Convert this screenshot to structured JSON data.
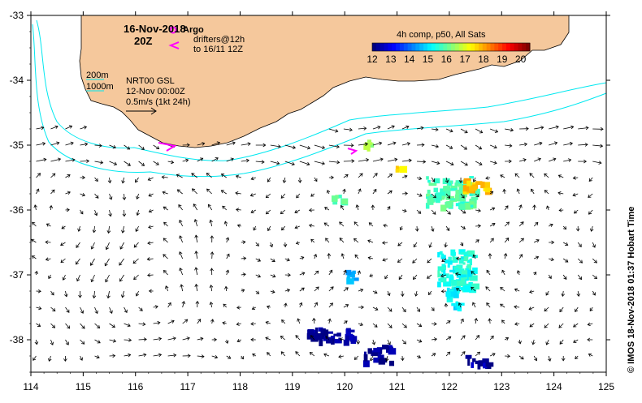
{
  "map": {
    "date_label": "16-Nov-2018",
    "time_label": "20Z",
    "legend_argo": "Argo",
    "legend_drifters_line1": "drifters@12h",
    "legend_drifters_line2": "to 16/11 12Z",
    "depth_200": "200m",
    "depth_1000": "1000m",
    "product_line1": "NRT00 GSL",
    "product_line2": "12-Nov 00:00Z",
    "scale_label": "0.5m/s (1kt 24h)",
    "colorbar_title": "4h comp, p50, All Sats",
    "colorbar_ticks": [
      "12",
      "13",
      "14",
      "15",
      "16",
      "17",
      "18",
      "19",
      "20"
    ],
    "colorbar_range": [
      12,
      20.5
    ],
    "credit": "© IMOS 18-Nov-2018 01:37 Hobart Time",
    "lon_ticks": [
      "114",
      "115",
      "116",
      "117",
      "118",
      "119",
      "120",
      "121",
      "122",
      "123",
      "124",
      "125"
    ],
    "lat_ticks": [
      "-33",
      "-34",
      "-35",
      "-36",
      "-37",
      "-38"
    ],
    "lon_range": [
      114,
      125
    ],
    "lat_range": [
      -38.5,
      -33
    ],
    "colors": {
      "land": "#f5c89c",
      "isobath": "#00e8f0",
      "argo": "#ff00ff",
      "drifter": "#ff00ff",
      "arrow": "#000000",
      "scale_arrow": "#ff0000"
    },
    "sst_patches": [
      {
        "lon": 122.0,
        "lat": -35.7,
        "w": 0.9,
        "h": 0.45,
        "sst": 15.8
      },
      {
        "lon": 122.5,
        "lat": -35.6,
        "w": 0.5,
        "h": 0.18,
        "sst": 17.8
      },
      {
        "lon": 122.1,
        "lat": -36.9,
        "w": 0.7,
        "h": 0.6,
        "sst": 15.4
      },
      {
        "lon": 122.05,
        "lat": -37.35,
        "w": 0.25,
        "h": 0.35,
        "sst": 15.0
      },
      {
        "lon": 119.7,
        "lat": -37.9,
        "w": 0.9,
        "h": 0.2,
        "sst": 12.2
      },
      {
        "lon": 120.6,
        "lat": -38.2,
        "w": 0.5,
        "h": 0.25,
        "sst": 12.2
      },
      {
        "lon": 122.5,
        "lat": -38.3,
        "w": 0.4,
        "h": 0.15,
        "sst": 12.3
      },
      {
        "lon": 120.1,
        "lat": -37.0,
        "w": 0.2,
        "h": 0.2,
        "sst": 14.7
      },
      {
        "lon": 119.8,
        "lat": -35.8,
        "w": 0.3,
        "h": 0.08,
        "sst": 16.0
      },
      {
        "lon": 121.0,
        "lat": -35.35,
        "w": 0.12,
        "h": 0.1,
        "sst": 17.6
      },
      {
        "lon": 120.4,
        "lat": -34.95,
        "w": 0.12,
        "h": 0.08,
        "sst": 16.5
      }
    ]
  }
}
